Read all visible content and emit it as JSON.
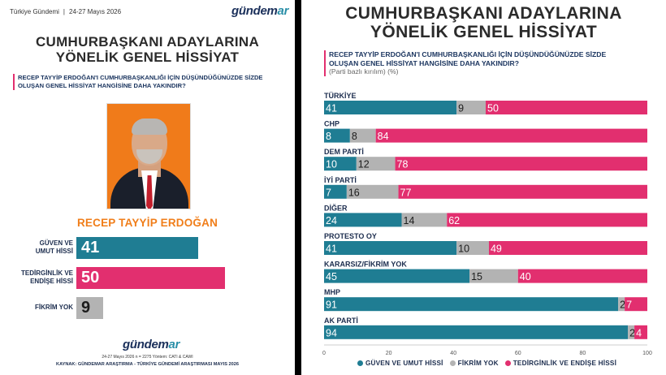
{
  "left": {
    "survey_name": "Türkiye Gündemi",
    "survey_date": "24-27 Mayıs 2026",
    "logo_main": "gündem",
    "logo_accent": "ar",
    "title_line1": "CUMHURBAŞKANI ADAYLARINA",
    "title_line2": "YÖNELİK GENEL HİSSİYAT",
    "question_line1": "RECEP TAYYİP ERDOĞAN'I CUMHURBAŞKANLIĞI İÇİN DÜŞÜNDÜĞÜNÜZDE SİZDE",
    "question_line2": "OLUŞAN GENEL HİSSİYAT HANGİSİNE DAHA YAKINDIR?",
    "candidate_name": "RECEP TAYYİP ERDOĞAN",
    "bars": [
      {
        "label_line1": "GÜVEN VE",
        "label_line2": "UMUT HİSSİ",
        "value": 41,
        "color": "#1f7d93"
      },
      {
        "label_line1": "TEDİRGİNLİK VE",
        "label_line2": "ENDİŞE HİSSİ",
        "value": 50,
        "color": "#e22f6f"
      },
      {
        "label_line1": "FİKRİM YOK",
        "label_line2": "",
        "value": 9,
        "color": "#b3b3b3"
      }
    ],
    "meta": "24-27 Mayıs 2026  n = 2275  Yöntem: CATI & CAWI",
    "source": "KAYNAK: GÜNDEMAR ARAŞTIRMA - TÜRKİYE GÜNDEMİ ARAŞTIRMASI MAYIS 2026"
  },
  "right": {
    "title_line1": "CUMHURBAŞKANI ADAYLARINA",
    "title_line2": "YÖNELİK GENEL HİSSİYAT",
    "question_line1": "RECEP TAYYİP ERDOĞAN'I CUMHURBAŞKANLIĞI İÇİN DÜŞÜNDÜĞÜNÜZDE SİZDE",
    "question_line2": "OLUŞAN GENEL HİSSİYAT HANGİSİNE DAHA YAKINDIR?",
    "question_sub": "(Parti bazlı kırılım)  (%)"
  },
  "chart_data": {
    "type": "bar",
    "orientation": "horizontal-stacked",
    "categories": [
      "TÜRKİYE",
      "CHP",
      "DEM PARTİ",
      "İYİ PARTİ",
      "DİĞER",
      "PROTESTO OY",
      "KARARSIZ/FİKRİM YOK",
      "MHP",
      "AK PARTİ"
    ],
    "series": [
      {
        "name": "GÜVEN VE UMUT HİSSİ",
        "color": "#1f7d93",
        "values": [
          41,
          8,
          10,
          7,
          24,
          41,
          45,
          91,
          94
        ]
      },
      {
        "name": "FİKRİM YOK",
        "color": "#b3b3b3",
        "values": [
          9,
          8,
          12,
          16,
          14,
          10,
          15,
          2,
          2
        ]
      },
      {
        "name": "TEDİRGİNLİK VE ENDİŞE HİSSİ",
        "color": "#e22f6f",
        "values": [
          50,
          84,
          78,
          77,
          62,
          49,
          40,
          7,
          4
        ]
      }
    ],
    "xlim": [
      0,
      100
    ],
    "xticks": [
      0,
      20,
      40,
      60,
      80,
      100
    ],
    "legend": "bottom",
    "grid": false
  }
}
